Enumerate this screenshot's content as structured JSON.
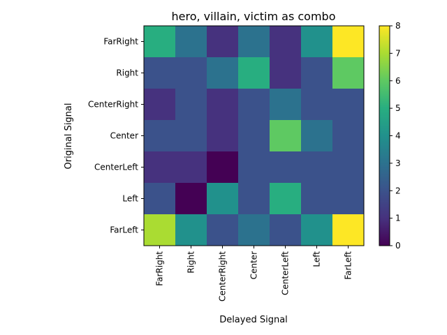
{
  "chart_data": {
    "type": "heatmap",
    "title": "hero, villain, victim as combo",
    "xlabel": "Delayed Signal",
    "ylabel": "Original Signal",
    "x_categories": [
      "FarRight",
      "Right",
      "CenterRight",
      "Center",
      "CenterLeft",
      "Left",
      "FarLeft"
    ],
    "y_categories": [
      "FarRight",
      "Right",
      "CenterRight",
      "Center",
      "CenterLeft",
      "Left",
      "FarLeft"
    ],
    "values": [
      [
        5,
        3,
        1,
        3,
        1,
        4,
        8
      ],
      [
        2,
        2,
        3,
        5,
        1,
        2,
        6
      ],
      [
        1,
        2,
        1,
        2,
        3,
        2,
        2
      ],
      [
        2,
        2,
        1,
        2,
        6,
        3,
        2
      ],
      [
        1,
        1,
        0,
        2,
        2,
        2,
        2
      ],
      [
        2,
        0,
        4,
        2,
        5,
        2,
        2
      ],
      [
        7,
        4,
        2,
        3,
        2,
        4,
        8
      ]
    ],
    "colorbar": {
      "min": 0,
      "max": 8,
      "ticks": [
        "0",
        "1",
        "2",
        "3",
        "4",
        "5",
        "6",
        "7",
        "8"
      ]
    },
    "colormap": "viridis",
    "grid": false
  }
}
